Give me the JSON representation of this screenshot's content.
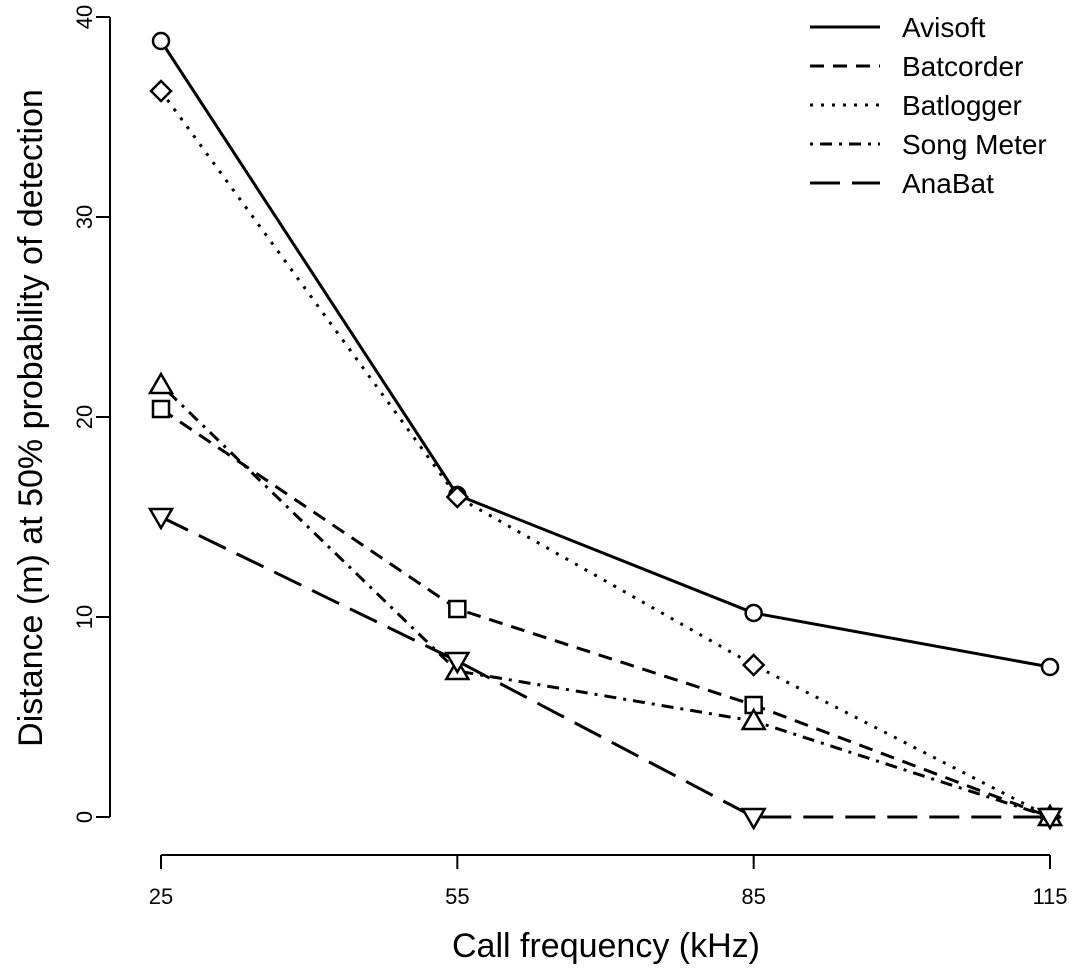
{
  "chart_data": {
    "type": "line",
    "xlabel": "Call frequency (kHz)",
    "ylabel": "Distance (m) at 50% probability of detection",
    "x": [
      25,
      55,
      85,
      115
    ],
    "x_ticks": [
      "25",
      "55",
      "85",
      "115"
    ],
    "y_ticks": [
      "0",
      "10",
      "20",
      "30",
      "40"
    ],
    "ylim": [
      0,
      40
    ],
    "xlim": [
      25,
      115
    ],
    "grid": false,
    "legend_position": "top-right",
    "series": [
      {
        "name": "Avisoft",
        "values": [
          38.8,
          16.1,
          10.2,
          7.5
        ],
        "marker": "circle",
        "line": "solid"
      },
      {
        "name": "Batcorder",
        "values": [
          20.4,
          10.4,
          5.6,
          0
        ],
        "marker": "square",
        "line": "dashed"
      },
      {
        "name": "Batlogger",
        "values": [
          36.3,
          16.0,
          7.6,
          0
        ],
        "marker": "diamond",
        "line": "dotted"
      },
      {
        "name": "Song Meter",
        "values": [
          21.6,
          7.3,
          4.8,
          0
        ],
        "marker": "triangle-up",
        "line": "dotdash"
      },
      {
        "name": "AnaBat",
        "values": [
          15.0,
          7.8,
          0,
          0
        ],
        "marker": "triangle-down",
        "line": "longdash"
      }
    ]
  }
}
